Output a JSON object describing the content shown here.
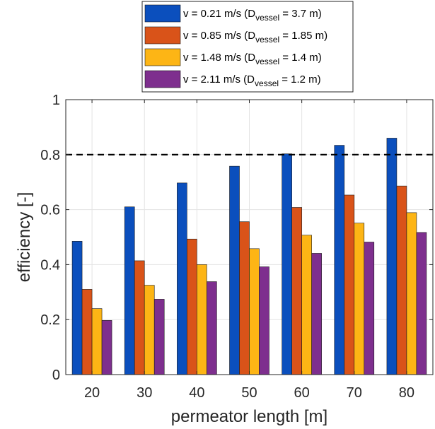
{
  "chart_data": {
    "type": "bar",
    "categories": [
      "20",
      "30",
      "40",
      "50",
      "60",
      "70",
      "80"
    ],
    "series": [
      {
        "name": "v = 0.21 m/s (D_vessel = 3.7 m)",
        "legend_label": {
          "prefix": "v = 0.21 m/s (D",
          "sub": "vessel",
          "suffix": " = 3.7 m)"
        },
        "color": "#0b4fbd",
        "values": [
          0.485,
          0.61,
          0.697,
          0.758,
          0.803,
          0.834,
          0.86
        ]
      },
      {
        "name": "v = 0.85 m/s (D_vessel = 1.85 m)",
        "legend_label": {
          "prefix": "v = 0.85 m/s (D",
          "sub": "vessel",
          "suffix": " = 1.85 m)"
        },
        "color": "#d95319",
        "values": [
          0.31,
          0.414,
          0.493,
          0.556,
          0.608,
          0.653,
          0.686
        ]
      },
      {
        "name": "v = 1.48 m/s (D_vessel = 1.4 m)",
        "legend_label": {
          "prefix": "v = 1.48 m/s (D",
          "sub": "vessel",
          "suffix": " = 1.4 m)"
        },
        "color": "#fdb515",
        "values": [
          0.24,
          0.325,
          0.4,
          0.458,
          0.507,
          0.551,
          0.589
        ]
      },
      {
        "name": "v = 2.11 m/s (D_vessel = 1.2 m)",
        "legend_label": {
          "prefix": "v = 2.11 m/s (D",
          "sub": "vessel",
          "suffix": " = 1.2 m)"
        },
        "color": "#7e2f8e",
        "values": [
          0.197,
          0.274,
          0.338,
          0.392,
          0.441,
          0.482,
          0.517
        ]
      }
    ],
    "reference_line": {
      "y": 0.8,
      "style": "dashed",
      "color": "#000000"
    },
    "xlabel": "permeator length [m]",
    "ylabel": "efficiency [-]",
    "ylim": [
      0,
      1
    ],
    "yticks": [
      0,
      0.2,
      0.4,
      0.6,
      0.8,
      1
    ],
    "ytick_labels": [
      "0",
      "0.2",
      "0.4",
      "0.6",
      "0.8",
      "1"
    ],
    "grid": true,
    "legend_position": "top-center-outside"
  }
}
